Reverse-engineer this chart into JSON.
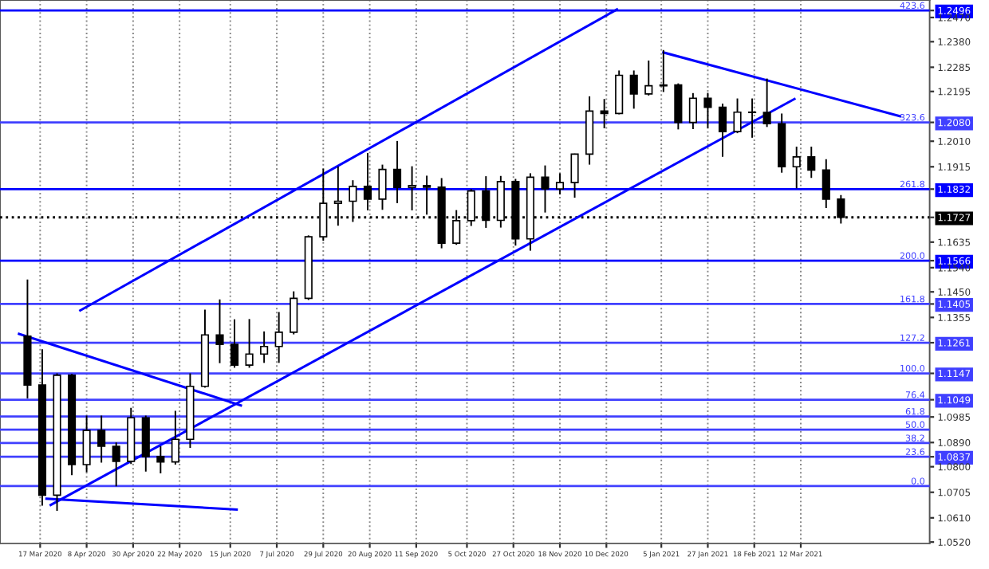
{
  "chart_data": {
    "type": "candlestick",
    "color": "#000000",
    "x": [
      "2020-03-11",
      "2020-03-18",
      "2020-03-25",
      "2020-04-01",
      "2020-04-08",
      "2020-04-15",
      "2020-04-22",
      "2020-04-29",
      "2020-05-06",
      "2020-05-13",
      "2020-05-20",
      "2020-05-27",
      "2020-06-03",
      "2020-06-10",
      "2020-06-17",
      "2020-06-24",
      "2020-07-01",
      "2020-07-08",
      "2020-07-15",
      "2020-07-22",
      "2020-07-29",
      "2020-08-05",
      "2020-08-12",
      "2020-08-19",
      "2020-08-26",
      "2020-09-02",
      "2020-09-09",
      "2020-09-16",
      "2020-09-23",
      "2020-09-30",
      "2020-10-07",
      "2020-10-14",
      "2020-10-21",
      "2020-10-28",
      "2020-11-04",
      "2020-11-11",
      "2020-11-18",
      "2020-11-25",
      "2020-12-02",
      "2020-12-09",
      "2020-12-16",
      "2020-12-23",
      "2020-12-30",
      "2021-01-06",
      "2021-01-13",
      "2021-01-20",
      "2021-01-27",
      "2021-02-03",
      "2021-02-10",
      "2021-02-17",
      "2021-02-24",
      "2021-03-03",
      "2021-03-10",
      "2021-03-17",
      "2021-03-24",
      "2021-03-31"
    ],
    "ohlc": [
      [
        1.1285,
        1.1496,
        1.1054,
        1.1104
      ],
      [
        1.1104,
        1.1237,
        1.0655,
        1.0694
      ],
      [
        1.0694,
        1.1147,
        1.0636,
        1.114
      ],
      [
        1.114,
        1.1145,
        1.0769,
        1.0808
      ],
      [
        1.0808,
        1.099,
        1.078,
        1.0935
      ],
      [
        1.0935,
        1.099,
        1.0815,
        1.0876
      ],
      [
        1.0876,
        1.089,
        1.0727,
        1.082
      ],
      [
        1.082,
        1.1019,
        1.081,
        1.0982
      ],
      [
        1.0982,
        1.099,
        1.0782,
        1.0838
      ],
      [
        1.0838,
        1.0876,
        1.0775,
        1.0818
      ],
      [
        1.0818,
        1.1008,
        1.0808,
        1.0902
      ],
      [
        1.0902,
        1.1147,
        1.087,
        1.1099
      ],
      [
        1.1099,
        1.1384,
        1.1094,
        1.129
      ],
      [
        1.129,
        1.1422,
        1.1185,
        1.1255
      ],
      [
        1.1255,
        1.1348,
        1.1168,
        1.1178
      ],
      [
        1.1178,
        1.1349,
        1.1168,
        1.1219
      ],
      [
        1.1219,
        1.1303,
        1.1186,
        1.1247
      ],
      [
        1.1247,
        1.1375,
        1.1186,
        1.13
      ],
      [
        1.13,
        1.1452,
        1.1292,
        1.1426
      ],
      [
        1.1426,
        1.166,
        1.142,
        1.1655
      ],
      [
        1.1655,
        1.1908,
        1.164,
        1.1779
      ],
      [
        1.1779,
        1.1916,
        1.1696,
        1.1787
      ],
      [
        1.1787,
        1.1865,
        1.171,
        1.1842
      ],
      [
        1.1842,
        1.1966,
        1.1753,
        1.1795
      ],
      [
        1.1795,
        1.1923,
        1.1755,
        1.1905
      ],
      [
        1.1905,
        1.2011,
        1.178,
        1.1838
      ],
      [
        1.1838,
        1.1917,
        1.1753,
        1.1845
      ],
      [
        1.1845,
        1.1882,
        1.1737,
        1.1839
      ],
      [
        1.1839,
        1.1873,
        1.1612,
        1.1631
      ],
      [
        1.1631,
        1.1754,
        1.1625,
        1.1715
      ],
      [
        1.1715,
        1.1832,
        1.1695,
        1.1825
      ],
      [
        1.1825,
        1.188,
        1.1688,
        1.1716
      ],
      [
        1.1716,
        1.1881,
        1.1689,
        1.186
      ],
      [
        1.186,
        1.187,
        1.1622,
        1.1647
      ],
      [
        1.1647,
        1.1891,
        1.1603,
        1.1876
      ],
      [
        1.1876,
        1.192,
        1.1745,
        1.1833
      ],
      [
        1.1833,
        1.1891,
        1.1812,
        1.1856
      ],
      [
        1.1856,
        1.1964,
        1.18,
        1.1962
      ],
      [
        1.1962,
        1.2177,
        1.1923,
        1.2122
      ],
      [
        1.2122,
        1.2167,
        1.2058,
        1.2113
      ],
      [
        1.2113,
        1.2273,
        1.211,
        1.2255
      ],
      [
        1.2255,
        1.2273,
        1.2131,
        1.2186
      ],
      [
        1.2186,
        1.231,
        1.218,
        1.2216
      ],
      [
        1.2216,
        1.2349,
        1.2193,
        1.2219
      ],
      [
        1.2219,
        1.2225,
        1.2054,
        1.208
      ],
      [
        1.208,
        1.2189,
        1.2055,
        1.217
      ],
      [
        1.217,
        1.219,
        1.2059,
        1.2136
      ],
      [
        1.2136,
        1.215,
        1.1952,
        1.2046
      ],
      [
        1.2046,
        1.2169,
        1.204,
        1.2118
      ],
      [
        1.2118,
        1.2169,
        1.2023,
        1.2117
      ],
      [
        1.2117,
        1.2243,
        1.2063,
        1.2075
      ],
      [
        1.2075,
        1.2113,
        1.1893,
        1.1915
      ],
      [
        1.1915,
        1.199,
        1.1835,
        1.1952
      ],
      [
        1.1952,
        1.199,
        1.1874,
        1.1903
      ],
      [
        1.1903,
        1.1943,
        1.1762,
        1.1795
      ],
      [
        1.1795,
        1.181,
        1.1704,
        1.1727
      ]
    ],
    "series": [
      {
        "type": "line",
        "color": "#0000ff",
        "x": [
          "2020-04-05",
          "2020-12-15"
        ],
        "values": [
          1.1381,
          1.25
        ]
      },
      {
        "type": "line",
        "color": "#0000ff",
        "x": [
          "2020-03-22",
          "2021-03-09"
        ],
        "values": [
          1.0658,
          1.2167
        ]
      },
      {
        "type": "line",
        "color": "#0000ff",
        "x": [
          "2021-01-06",
          "2021-04-28"
        ],
        "values": [
          1.234,
          1.2103
        ]
      },
      {
        "type": "line",
        "color": "#0000ff",
        "x": [
          "2020-03-07",
          "2020-06-20"
        ],
        "values": [
          1.1294,
          1.1028
        ]
      },
      {
        "type": "line",
        "color": "#0000ff",
        "x": [
          "2020-03-20",
          "2020-06-18"
        ],
        "values": [
          1.0681,
          1.0641
        ]
      }
    ],
    "xlim": [
      "2020-02-27",
      "2021-05-12"
    ],
    "xticks": [
      {
        "value": "2020-03-17",
        "label": "17 Mar 2020"
      },
      {
        "value": "2020-04-08",
        "label": "8 Apr 2020"
      },
      {
        "value": "2020-04-30",
        "label": "30 Apr 2020"
      },
      {
        "value": "2020-05-22",
        "label": "22 May 2020"
      },
      {
        "value": "2020-06-15",
        "label": "15 Jun 2020"
      },
      {
        "value": "2020-07-07",
        "label": "7 Jul 2020"
      },
      {
        "value": "2020-07-29",
        "label": "29 Jul 2020"
      },
      {
        "value": "2020-08-20",
        "label": "20 Aug 2020"
      },
      {
        "value": "2020-09-11",
        "label": "11 Sep 2020"
      },
      {
        "value": "2020-10-05",
        "label": "5 Oct 2020"
      },
      {
        "value": "2020-10-27",
        "label": "27 Oct 2020"
      },
      {
        "value": "2020-11-18",
        "label": "18 Nov 2020"
      },
      {
        "value": "2020-12-10",
        "label": "10 Dec 2020"
      },
      {
        "value": "2021-01-05",
        "label": "5 Jan 2021"
      },
      {
        "value": "2021-01-27",
        "label": "27 Jan 2021"
      },
      {
        "value": "2021-02-18",
        "label": "18 Feb 2021"
      },
      {
        "value": "2021-03-12",
        "label": "12 Mar 2021"
      }
    ],
    "ylim": [
      1.0515,
      1.2535
    ],
    "yticks": [
      {
        "value": 1.2496,
        "label": "1.2496"
      },
      {
        "value": 1.247,
        "label": "1.2470"
      },
      {
        "value": 1.238,
        "label": "1.2380"
      },
      {
        "value": 1.2285,
        "label": "1.2285"
      },
      {
        "value": 1.2195,
        "label": "1.2195"
      },
      {
        "value": 1.208,
        "label": "1.2080"
      },
      {
        "value": 1.201,
        "label": "1.2010"
      },
      {
        "value": 1.1915,
        "label": "1.1915"
      },
      {
        "value": 1.1832,
        "label": "1.1832"
      },
      {
        "value": 1.1727,
        "label": "1.1727"
      },
      {
        "value": 1.1635,
        "label": "1.1635"
      },
      {
        "value": 1.1566,
        "label": "1.1566"
      },
      {
        "value": 1.154,
        "label": "1.1540"
      },
      {
        "value": 1.145,
        "label": "1.1450"
      },
      {
        "value": 1.1405,
        "label": "1.1405"
      },
      {
        "value": 1.1355,
        "label": "1.1355"
      },
      {
        "value": 1.1261,
        "label": "1.1261"
      },
      {
        "value": 1.1147,
        "label": "1.1147"
      },
      {
        "value": 1.1049,
        "label": "1.1049"
      },
      {
        "value": 1.0985,
        "label": "1.0985"
      },
      {
        "value": 1.089,
        "label": "1.0890"
      },
      {
        "value": 1.0837,
        "label": "1.0837"
      },
      {
        "value": 1.08,
        "label": "1.0800"
      },
      {
        "value": 1.0705,
        "label": "1.0705"
      },
      {
        "value": 1.061,
        "label": "1.0610"
      },
      {
        "value": 1.052,
        "label": "1.0520"
      }
    ],
    "ref_lines": [
      {
        "axis": "y",
        "value": 1.2496,
        "color": "#0000ff"
      },
      {
        "axis": "y",
        "value": 1.208,
        "color": "#4040ff"
      },
      {
        "axis": "y",
        "value": 1.1832,
        "color": "#0000ff"
      },
      {
        "axis": "y",
        "value": 1.1727,
        "color": "#000000",
        "line_style": "dotted"
      },
      {
        "axis": "y",
        "value": 1.1566,
        "color": "#0000ff"
      },
      {
        "axis": "y",
        "value": 1.1405,
        "color": "#4040ff"
      },
      {
        "axis": "y",
        "value": 1.1261,
        "color": "#4040ff"
      },
      {
        "axis": "y",
        "value": 1.1147,
        "color": "#4040ff"
      },
      {
        "axis": "y",
        "value": 1.1049,
        "color": "#4040ff"
      },
      {
        "axis": "y",
        "value": 1.0987,
        "color": "#4040ff"
      },
      {
        "axis": "y",
        "value": 1.0938,
        "color": "#4040ff"
      },
      {
        "axis": "y",
        "value": 1.0888,
        "color": "#4040ff"
      },
      {
        "axis": "y",
        "value": 1.0837,
        "color": "#4040ff"
      },
      {
        "axis": "y",
        "value": 1.0728,
        "color": "#4040ff"
      }
    ],
    "annotations": [
      {
        "text": "423.6",
        "y": 1.2496
      },
      {
        "text": "323.6",
        "y": 1.208
      },
      {
        "text": "261.8",
        "y": 1.1832
      },
      {
        "text": "200.0",
        "y": 1.1566
      },
      {
        "text": "161.8",
        "y": 1.1405
      },
      {
        "text": "127.2",
        "y": 1.1261
      },
      {
        "text": "100.0",
        "y": 1.1147
      },
      {
        "text": "76.4",
        "y": 1.1049
      },
      {
        "text": "61.8",
        "y": 1.0987
      },
      {
        "text": "50.0",
        "y": 1.0938
      },
      {
        "text": "38.2",
        "y": 1.0888
      },
      {
        "text": "23.6",
        "y": 1.0837
      },
      {
        "text": "0.0",
        "y": 1.0728
      }
    ],
    "grid": "x",
    "legend": false
  }
}
